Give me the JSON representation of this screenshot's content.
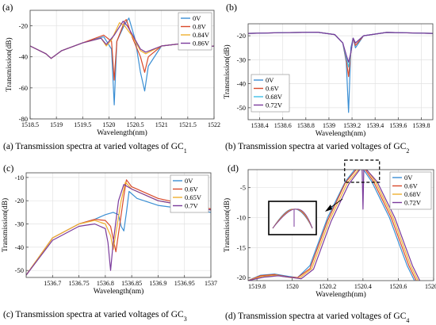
{
  "chart_data": [
    {
      "type": "line",
      "panel_label": "(a)",
      "caption": "(a) Transmission spectra at varied voltages of GC",
      "caption_sub": "1",
      "xlabel": "Wavelength(nm)",
      "ylabel": "Transmission(dB)",
      "xlim": [
        1518.5,
        1522
      ],
      "ylim": [
        -80,
        -10
      ],
      "xticks": [
        1518.5,
        1519,
        1519.5,
        1520,
        1520.5,
        1521,
        1521.5,
        1522
      ],
      "xtick_labels": [
        "1518.5",
        "1519",
        "1519.5",
        "1520",
        "1520.5",
        "1521",
        "1521.5",
        "1522"
      ],
      "yticks": [
        -80,
        -60,
        -40,
        -20
      ],
      "ytick_labels": [
        "-80",
        "-60",
        "-40",
        "-20"
      ],
      "grid": true,
      "legend": "top-right",
      "series": [
        {
          "name": "0V",
          "color": "#3b8fd4",
          "x": [
            1518.5,
            1518.8,
            1518.9,
            1519.1,
            1519.5,
            1519.9,
            1520.05,
            1520.1,
            1520.15,
            1520.3,
            1520.38,
            1520.5,
            1520.6,
            1520.68,
            1520.75,
            1521,
            1521.5,
            1521.8,
            1522
          ],
          "y": [
            -33,
            -38,
            -41,
            -36,
            -31,
            -27,
            -35,
            -71,
            -30,
            -19,
            -15,
            -29,
            -50,
            -62,
            -46,
            -33,
            -31,
            -34,
            -33
          ]
        },
        {
          "name": "0.8V",
          "color": "#d94a2b",
          "x": [
            1518.5,
            1518.8,
            1518.9,
            1519.1,
            1519.5,
            1519.9,
            1520.05,
            1520.1,
            1520.15,
            1520.3,
            1520.33,
            1520.45,
            1520.6,
            1520.68,
            1520.75,
            1521,
            1521.5,
            1521.8,
            1522
          ],
          "y": [
            -33,
            -38,
            -41,
            -36,
            -31,
            -26,
            -30,
            -55,
            -30,
            -17,
            -16,
            -28,
            -40,
            -50,
            -40,
            -33,
            -31,
            -34,
            -33
          ]
        },
        {
          "name": "0.84V",
          "color": "#f0b030",
          "x": [
            1518.5,
            1518.8,
            1518.9,
            1519.1,
            1519.5,
            1519.85,
            1519.95,
            1520.05,
            1520.2,
            1520.3,
            1520.45,
            1520.6,
            1520.7,
            1521,
            1521.5,
            1521.8,
            1522
          ],
          "y": [
            -33,
            -38,
            -41,
            -36,
            -31,
            -28,
            -33,
            -29,
            -18,
            -20,
            -27,
            -36,
            -38,
            -33,
            -31,
            -34,
            -33
          ]
        },
        {
          "name": "0.86V",
          "color": "#7b3b9c",
          "x": [
            1518.5,
            1518.8,
            1518.9,
            1519.1,
            1519.5,
            1519.85,
            1519.95,
            1520.1,
            1520.27,
            1520.35,
            1520.45,
            1520.6,
            1520.7,
            1521,
            1521.5,
            1521.8,
            1522
          ],
          "y": [
            -33,
            -38,
            -41,
            -36,
            -31,
            -28,
            -32,
            -26,
            -17,
            -20,
            -26,
            -35,
            -37,
            -33,
            -31,
            -34,
            -33
          ]
        }
      ]
    },
    {
      "type": "line",
      "panel_label": "(b)",
      "caption": "(b) Transmission  spectra at varied voltages of GC",
      "caption_sub": "2",
      "xlabel": "Wavelength(nm)",
      "ylabel": "Transmission(dB)",
      "xlim": [
        1538.3,
        1539.9
      ],
      "ylim": [
        -55,
        -15
      ],
      "xticks": [
        1538.4,
        1538.6,
        1538.8,
        1539,
        1539.2,
        1539.4,
        1539.6,
        1539.8
      ],
      "xtick_labels": [
        "1538.4",
        "1538.6",
        "1538.8",
        "1539",
        "1539.2",
        "1539.4",
        "1539.6",
        "1539.8"
      ],
      "yticks": [
        -50,
        -40,
        -30,
        -20
      ],
      "ytick_labels": [
        "-50",
        "-40",
        "-30",
        "-20"
      ],
      "grid": true,
      "legend": "bottom-left",
      "series": [
        {
          "name": "0V",
          "color": "#3b8fd4",
          "x": [
            1538.3,
            1538.6,
            1538.9,
            1539.05,
            1539.12,
            1539.15,
            1539.17,
            1539.19,
            1539.21,
            1539.23,
            1539.3,
            1539.5,
            1539.9
          ],
          "y": [
            -19,
            -18.7,
            -18.5,
            -19.5,
            -23,
            -31,
            -52,
            -25,
            -21,
            -25,
            -20,
            -18.6,
            -19
          ]
        },
        {
          "name": "0.6V",
          "color": "#d94a2b",
          "x": [
            1538.3,
            1538.6,
            1538.9,
            1539.05,
            1539.12,
            1539.15,
            1539.17,
            1539.19,
            1539.21,
            1539.23,
            1539.3,
            1539.5,
            1539.9
          ],
          "y": [
            -19,
            -18.7,
            -18.5,
            -19.5,
            -23,
            -30,
            -37,
            -27,
            -21,
            -24,
            -20,
            -18.6,
            -19
          ]
        },
        {
          "name": "0.68V",
          "color": "#3fc0e8",
          "x": [
            1538.3,
            1538.6,
            1538.9,
            1539.05,
            1539.12,
            1539.15,
            1539.17,
            1539.19,
            1539.21,
            1539.23,
            1539.3,
            1539.5,
            1539.9
          ],
          "y": [
            -19,
            -18.7,
            -18.5,
            -19.5,
            -23,
            -29,
            -33,
            -27,
            -21,
            -23,
            -20,
            -18.6,
            -19
          ]
        },
        {
          "name": "0.72V",
          "color": "#7b3b9c",
          "x": [
            1538.3,
            1538.6,
            1538.9,
            1539.05,
            1539.12,
            1539.15,
            1539.17,
            1539.19,
            1539.21,
            1539.23,
            1539.3,
            1539.5,
            1539.9
          ],
          "y": [
            -19,
            -18.7,
            -18.5,
            -19.5,
            -23,
            -28,
            -31,
            -27,
            -21,
            -23,
            -20,
            -18.6,
            -19
          ]
        }
      ]
    },
    {
      "type": "line",
      "panel_label": "(c)",
      "caption": "(c) Transmission  spectra at varied voltages of GC",
      "caption_sub": "3",
      "xlabel": "Wavelength(nm)",
      "ylabel": "Transmission(dB)",
      "xlim": [
        1536.65,
        1537.0
      ],
      "ylim": [
        -53,
        -8
      ],
      "xticks": [
        1536.7,
        1536.75,
        1536.8,
        1536.85,
        1536.9,
        1536.95,
        1537
      ],
      "xtick_labels": [
        "1536.7",
        "1536.75",
        "1536.8",
        "1536.85",
        "1536.9",
        "1536.95",
        "1537"
      ],
      "yticks": [
        -50,
        -40,
        -30,
        -20,
        -10
      ],
      "ytick_labels": [
        "-50",
        "-40",
        "-30",
        "-20",
        "-10"
      ],
      "grid": true,
      "legend": "top-right",
      "series": [
        {
          "name": "0V",
          "color": "#3b8fd4",
          "x": [
            1536.65,
            1536.7,
            1536.75,
            1536.78,
            1536.8,
            1536.815,
            1536.825,
            1536.83,
            1536.835,
            1536.84,
            1536.845,
            1536.86,
            1536.9,
            1536.95,
            1537
          ],
          "y": [
            -52,
            -36,
            -30,
            -28,
            -26,
            -25,
            -26,
            -31,
            -33,
            -25,
            -16,
            -19,
            -22,
            -23.5,
            -25
          ]
        },
        {
          "name": "0.6V",
          "color": "#d94a2b",
          "x": [
            1536.65,
            1536.7,
            1536.75,
            1536.78,
            1536.8,
            1536.81,
            1536.82,
            1536.825,
            1536.835,
            1536.84,
            1536.85,
            1536.9,
            1536.95,
            1537
          ],
          "y": [
            -52,
            -36,
            -30,
            -28,
            -28.5,
            -31,
            -42,
            -34,
            -18,
            -11,
            -14,
            -19,
            -21.5,
            -23.5
          ]
        },
        {
          "name": "0.65V",
          "color": "#f0b030",
          "x": [
            1536.65,
            1536.7,
            1536.75,
            1536.78,
            1536.8,
            1536.81,
            1536.815,
            1536.82,
            1536.83,
            1536.838,
            1536.85,
            1536.9,
            1536.95,
            1537
          ],
          "y": [
            -52,
            -36,
            -30,
            -28.5,
            -30,
            -35,
            -41,
            -34,
            -20,
            -12,
            -15,
            -20,
            -22,
            -24
          ]
        },
        {
          "name": "0.7V",
          "color": "#7b3b9c",
          "x": [
            1536.65,
            1536.7,
            1536.75,
            1536.78,
            1536.8,
            1536.805,
            1536.81,
            1536.815,
            1536.825,
            1536.835,
            1536.85,
            1536.9,
            1536.95,
            1537
          ],
          "y": [
            -52,
            -37,
            -31,
            -30,
            -32,
            -38,
            -50,
            -38,
            -20,
            -13,
            -15,
            -20,
            -22,
            -24
          ]
        }
      ]
    },
    {
      "type": "line",
      "panel_label": "(d)",
      "caption": "(d) Transmission  spectra at varied voltages of GC",
      "caption_sub": "4",
      "xlabel": "Wavelength(nm)",
      "ylabel": "Transmission(dB)",
      "xlim": [
        1519.75,
        1520.8
      ],
      "ylim": [
        -20.5,
        -2
      ],
      "xticks": [
        1519.8,
        1520,
        1520.2,
        1520.4,
        1520.6,
        1520.8
      ],
      "xtick_labels": [
        "1519.8",
        "1520",
        "1520.2",
        "1520.4",
        "1520.6",
        "1520.8"
      ],
      "yticks": [
        -20,
        -15,
        -10,
        -5
      ],
      "ytick_labels": [
        "-20",
        "-15",
        "-10",
        "-5"
      ],
      "grid": true,
      "legend": "top-right",
      "series": [
        {
          "name": "0V",
          "color": "#3b8fd4",
          "x": [
            1519.75,
            1519.82,
            1519.9,
            1519.98,
            1520.03,
            1520.1,
            1520.2,
            1520.3,
            1520.38,
            1520.45,
            1520.5,
            1520.55,
            1520.6,
            1520.65,
            1520.7
          ],
          "y": [
            -20.5,
            -19.6,
            -19.4,
            -19.8,
            -20,
            -18,
            -10,
            -4,
            -1,
            -4,
            -7,
            -10,
            -14,
            -18,
            -21
          ]
        },
        {
          "name": "0.6V",
          "color": "#d94a2b",
          "x": [
            1519.75,
            1519.82,
            1519.9,
            1519.98,
            1520.03,
            1520.1,
            1520.2,
            1520.3,
            1520.39,
            1520.46,
            1520.51,
            1520.56,
            1520.61,
            1520.66,
            1520.71
          ],
          "y": [
            -20.5,
            -19.7,
            -19.5,
            -19.9,
            -20,
            -18.5,
            -10.5,
            -4.2,
            -1,
            -4,
            -7,
            -10,
            -14,
            -18,
            -21
          ]
        },
        {
          "name": "0.68V",
          "color": "#f0b030",
          "x": [
            1519.75,
            1519.83,
            1519.91,
            1519.99,
            1520.04,
            1520.11,
            1520.21,
            1520.31,
            1520.4,
            1520.47,
            1520.52,
            1520.57,
            1520.62,
            1520.67,
            1520.72
          ],
          "y": [
            -20.5,
            -19.8,
            -19.6,
            -20,
            -20.1,
            -18.5,
            -10.5,
            -4.3,
            -1.1,
            -4,
            -7,
            -10,
            -14,
            -18,
            -21
          ]
        },
        {
          "name": "0.72V",
          "color": "#7b3b9c",
          "x": [
            1519.75,
            1519.84,
            1519.92,
            1520,
            1520.05,
            1520.12,
            1520.22,
            1520.32,
            1520.395,
            1520.4,
            1520.405,
            1520.48,
            1520.53,
            1520.58,
            1520.63,
            1520.68,
            1520.73
          ],
          "y": [
            -20.5,
            -19.9,
            -19.7,
            -20,
            -20.2,
            -18.6,
            -10.6,
            -4.4,
            -1.5,
            -8.6,
            -1.5,
            -4,
            -7,
            -10,
            -14,
            -18,
            -21
          ]
        }
      ]
    }
  ]
}
